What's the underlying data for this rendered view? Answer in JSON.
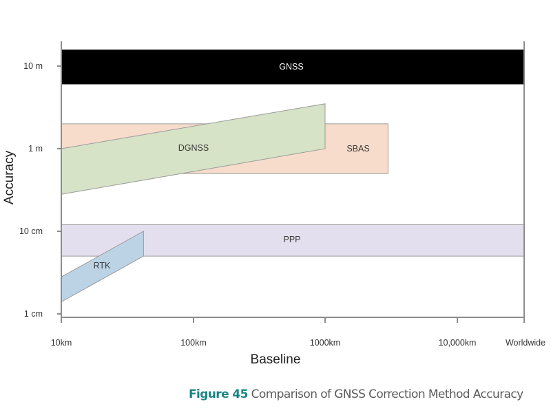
{
  "chart_data": {
    "type": "range-band",
    "ylabel": "Accuracy",
    "xlabel": "Baseline",
    "x_ticks": [
      "10km",
      "100km",
      "1000km",
      "10,000km",
      "Worldwide"
    ],
    "y_ticks": [
      "10 m",
      "1 m",
      "10 cm",
      "1 cm"
    ],
    "y_scale": "log",
    "series": [
      {
        "name": "GNSS",
        "color": "#000000",
        "label_color": "#ffffff",
        "polygon": [
          [
            10,
            16
          ],
          [
            "Worldwide",
            16
          ],
          [
            "Worldwide",
            6
          ],
          [
            10,
            6
          ]
        ]
      },
      {
        "name": "SBAS",
        "color": "#f7dccb",
        "label_color": "#3a3a3a",
        "polygon": [
          [
            10,
            2
          ],
          [
            3000,
            2
          ],
          [
            3000,
            0.5
          ],
          [
            10,
            0.5
          ]
        ]
      },
      {
        "name": "DGNSS",
        "color": "#d6e3c6",
        "label_color": "#3a3a3a",
        "polygon": [
          [
            10,
            1
          ],
          [
            1000,
            3.5
          ],
          [
            1000,
            1
          ],
          [
            10,
            0.28
          ]
        ]
      },
      {
        "name": "PPP",
        "color": "#e4dfee",
        "label_color": "#3a3a3a",
        "polygon": [
          [
            10,
            0.12
          ],
          [
            "Worldwide",
            0.12
          ],
          [
            "Worldwide",
            0.05
          ],
          [
            10,
            0.05
          ]
        ]
      },
      {
        "name": "RTK",
        "color": "#bcd3e6",
        "label_color": "#3a3a3a",
        "polygon": [
          [
            10,
            0.028
          ],
          [
            42,
            0.1
          ],
          [
            42,
            0.05
          ],
          [
            10,
            0.014
          ]
        ]
      }
    ]
  },
  "caption": {
    "figure": "Figure 45",
    "text": "Comparison of GNSS Correction Method Accuracy"
  }
}
